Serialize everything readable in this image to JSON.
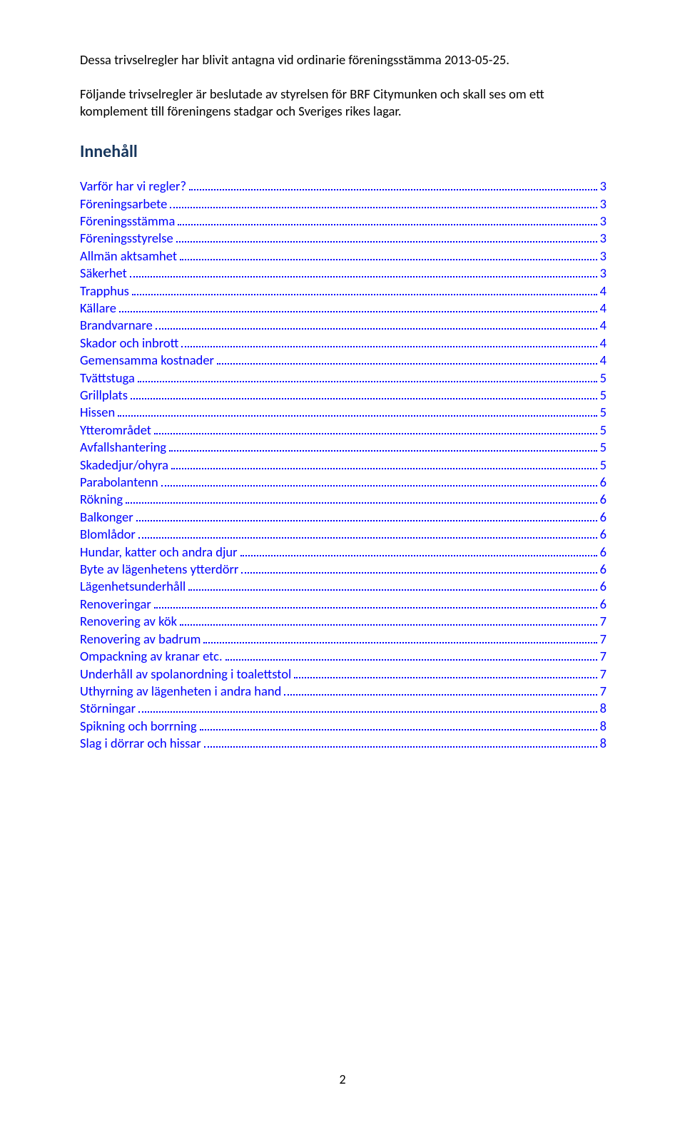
{
  "intro": {
    "para1": "Dessa trivselregler har blivit antagna vid ordinarie föreningsstämma 2013-05-25.",
    "para2": "Följande trivselregler är beslutade av styrelsen för BRF Citymunken och skall ses om ett komplement till föreningens stadgar och Sveriges rikes lagar."
  },
  "heading": "Innehåll",
  "toc": [
    {
      "label": "Varför har vi regler?",
      "page": "3"
    },
    {
      "label": "Föreningsarbete",
      "page": "3"
    },
    {
      "label": "Föreningsstämma",
      "page": "3"
    },
    {
      "label": "Föreningsstyrelse",
      "page": "3"
    },
    {
      "label": "Allmän aktsamhet",
      "page": "3"
    },
    {
      "label": "Säkerhet",
      "page": "3"
    },
    {
      "label": "Trapphus",
      "page": "4"
    },
    {
      "label": "Källare",
      "page": "4"
    },
    {
      "label": "Brandvarnare",
      "page": "4"
    },
    {
      "label": "Skador och inbrott",
      "page": "4"
    },
    {
      "label": "Gemensamma kostnader",
      "page": "4"
    },
    {
      "label": "Tvättstuga",
      "page": "5"
    },
    {
      "label": "Grillplats",
      "page": "5"
    },
    {
      "label": "Hissen",
      "page": "5"
    },
    {
      "label": "Ytterområdet",
      "page": "5"
    },
    {
      "label": "Avfallshantering",
      "page": "5"
    },
    {
      "label": "Skadedjur/ohyra",
      "page": "5"
    },
    {
      "label": "Parabolantenn",
      "page": "6"
    },
    {
      "label": "Rökning",
      "page": "6"
    },
    {
      "label": "Balkonger",
      "page": "6"
    },
    {
      "label": "Blomlådor",
      "page": "6"
    },
    {
      "label": "Hundar, katter och andra djur",
      "page": "6"
    },
    {
      "label": "Byte av lägenhetens ytterdörr",
      "page": "6"
    },
    {
      "label": "Lägenhetsunderhåll",
      "page": "6"
    },
    {
      "label": "Renoveringar",
      "page": "6"
    },
    {
      "label": "Renovering av kök",
      "page": "7"
    },
    {
      "label": "Renovering av badrum",
      "page": "7"
    },
    {
      "label": "Ompackning av kranar etc.",
      "page": "7"
    },
    {
      "label": "Underhåll av spolanordning i toalettstol",
      "page": "7"
    },
    {
      "label": "Uthyrning av lägenheten i andra hand",
      "page": "7"
    },
    {
      "label": "Störningar",
      "page": "8"
    },
    {
      "label": "Spikning och borrning",
      "page": "8"
    },
    {
      "label": "Slag i dörrar och hissar",
      "page": "8"
    }
  ],
  "pageNumber": "2",
  "colors": {
    "heading": "#17365d",
    "link": "#0000ff",
    "text": "#000000",
    "background": "#ffffff"
  },
  "typography": {
    "body_fontsize": 18.5,
    "heading_fontsize": 24,
    "pagenum_fontsize": 18
  }
}
